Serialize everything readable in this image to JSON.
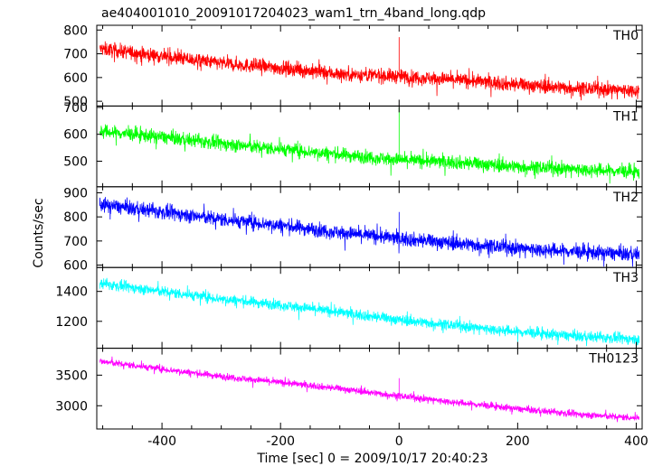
{
  "chart_data": {
    "type": "line",
    "title": "ae404001010_20091017204023_wam1_trn_4band_long.qdp",
    "xlabel": "Time [sec] 0 = 2009/10/17 20:40:23",
    "ylabel": "Counts/sec",
    "xlim": [
      -510,
      410
    ],
    "xticks": [
      -400,
      -200,
      0,
      200,
      400
    ],
    "grid": false,
    "series": [
      {
        "name": "TH0",
        "color": "#ff0000",
        "ylim": [
          480,
          820
        ],
        "yticks": [
          500,
          600,
          700,
          800
        ],
        "trend": {
          "x": [
            -500,
            -400,
            -300,
            -200,
            -100,
            0,
            100,
            200,
            300,
            400
          ],
          "y": [
            720,
            690,
            660,
            640,
            615,
            605,
            590,
            570,
            555,
            545
          ]
        },
        "noise": 38,
        "spike": {
          "x": 0,
          "y": 770
        }
      },
      {
        "name": "TH1",
        "color": "#00ff00",
        "ylim": [
          405,
          705
        ],
        "yticks": [
          500,
          600,
          700
        ],
        "trend": {
          "x": [
            -500,
            -400,
            -300,
            -200,
            -100,
            0,
            100,
            200,
            300,
            400
          ],
          "y": [
            610,
            590,
            565,
            545,
            525,
            505,
            495,
            480,
            470,
            460
          ]
        },
        "noise": 32,
        "spike": {
          "x": 0,
          "y": 700
        }
      },
      {
        "name": "TH2",
        "color": "#0000ff",
        "ylim": [
          590,
          925
        ],
        "yticks": [
          600,
          700,
          800,
          900
        ],
        "trend": {
          "x": [
            -500,
            -400,
            -300,
            -200,
            -100,
            0,
            100,
            200,
            300,
            400
          ],
          "y": [
            850,
            820,
            790,
            765,
            735,
            710,
            690,
            670,
            655,
            645
          ]
        },
        "noise": 38,
        "spike": {
          "x": 0,
          "y": 820
        }
      },
      {
        "name": "TH3",
        "color": "#00ffff",
        "ylim": [
          1020,
          1560
        ],
        "yticks": [
          1200,
          1400
        ],
        "trend": {
          "x": [
            -500,
            -400,
            -300,
            -200,
            -100,
            0,
            100,
            200,
            300,
            400
          ],
          "y": [
            1450,
            1400,
            1350,
            1310,
            1260,
            1210,
            1170,
            1130,
            1100,
            1080
          ]
        },
        "noise": 45,
        "spike": null
      },
      {
        "name": "TH0123",
        "color": "#ff00ff",
        "ylim": [
          2620,
          3940
        ],
        "yticks": [
          3000,
          3500
        ],
        "trend": {
          "x": [
            -500,
            -400,
            -300,
            -200,
            -100,
            0,
            100,
            200,
            300,
            400
          ],
          "y": [
            3720,
            3600,
            3480,
            3380,
            3280,
            3160,
            3050,
            2950,
            2860,
            2800
          ]
        },
        "noise": 70,
        "spike": {
          "x": 0,
          "y": 3450
        }
      }
    ]
  }
}
